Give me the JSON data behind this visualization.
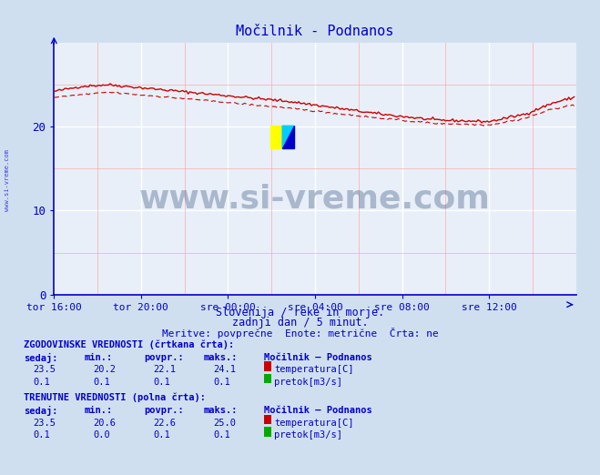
{
  "title": "Močilnik - Podnanos",
  "bg_color": "#d0dff0",
  "plot_bg_color": "#e8eff8",
  "grid_color_major": "#ffffff",
  "grid_color_minor": "#ffaaaa",
  "line_color": "#cc0000",
  "axis_color": "#0000cc",
  "text_color": "#0000aa",
  "xlim_min": 0,
  "xlim_max": 288,
  "ylim_min": 0,
  "ylim_max": 30,
  "yticks": [
    0,
    10,
    20
  ],
  "xtick_labels": [
    "tor 16:00",
    "tor 20:00",
    "sre 00:00",
    "sre 04:00",
    "sre 08:00",
    "sre 12:00"
  ],
  "xtick_positions": [
    0,
    48,
    96,
    144,
    192,
    240
  ],
  "subtitle1": "Slovenija / reke in morje.",
  "subtitle2": "zadnji dan / 5 minut.",
  "subtitle3": "Meritve: povprečne  Enote: metrične  Črta: ne",
  "label_hist": "ZGODOVINSKE VREDNOSTI (črtkana črta):",
  "label_curr": "TRENUTNE VREDNOSTI (polna črta):",
  "hist_temp": [
    23.5,
    20.2,
    22.1,
    24.1
  ],
  "hist_flow": [
    0.1,
    0.1,
    0.1,
    0.1
  ],
  "curr_temp": [
    23.5,
    20.6,
    22.6,
    25.0
  ],
  "curr_flow": [
    0.1,
    0.0,
    0.1,
    0.1
  ],
  "watermark_text": "www.si-vreme.com",
  "watermark_color": "#1a3a6a",
  "watermark_alpha": 0.3,
  "temp_color_red": "#cc0000",
  "flow_color_green": "#00aa00"
}
